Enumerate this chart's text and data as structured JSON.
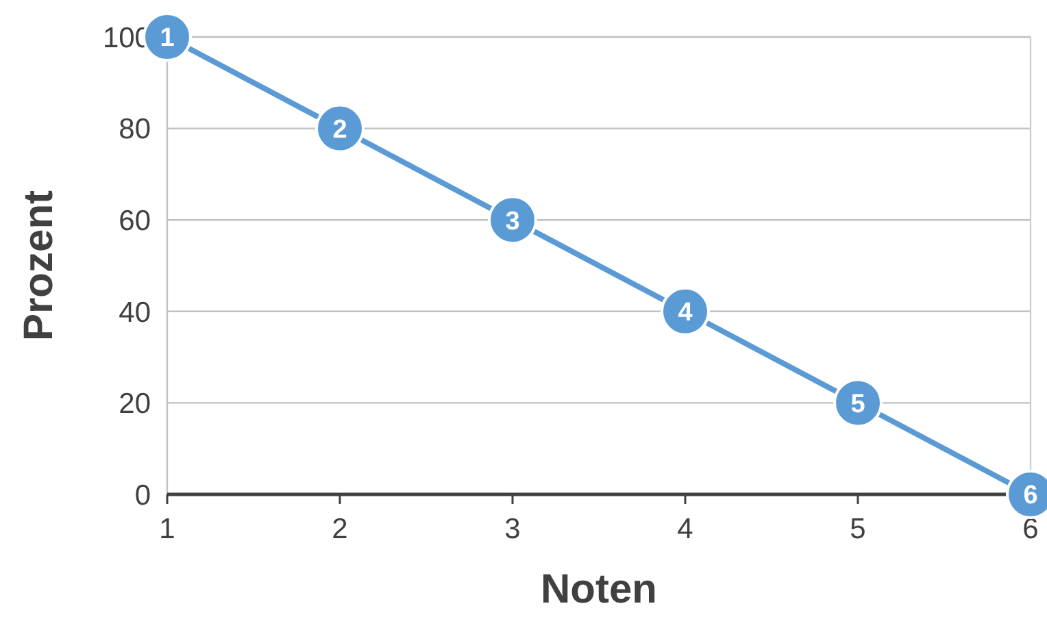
{
  "chart_data": {
    "type": "line",
    "xlabel": "Noten",
    "ylabel": "Prozent",
    "x": [
      1,
      2,
      3,
      4,
      5,
      6
    ],
    "series": [
      {
        "color": "#5b9bd5",
        "values": [
          100,
          80,
          60,
          40,
          20,
          0
        ]
      }
    ],
    "annotations": [
      {
        "text": "1",
        "x": 1,
        "y": 100
      },
      {
        "text": "2",
        "x": 2,
        "y": 80
      },
      {
        "text": "3",
        "x": 3,
        "y": 60
      },
      {
        "text": "4",
        "x": 4,
        "y": 40
      },
      {
        "text": "5",
        "x": 5,
        "y": 20
      },
      {
        "text": "6",
        "x": 6,
        "y": 0
      }
    ],
    "xlim": [
      1,
      6
    ],
    "xticks": [
      1,
      2,
      3,
      4,
      5,
      6
    ],
    "ylim": [
      0,
      100
    ],
    "yticks": [
      0,
      20,
      40,
      60,
      80,
      100
    ],
    "grid": "y",
    "marker": "circle",
    "line_style": "solid"
  }
}
